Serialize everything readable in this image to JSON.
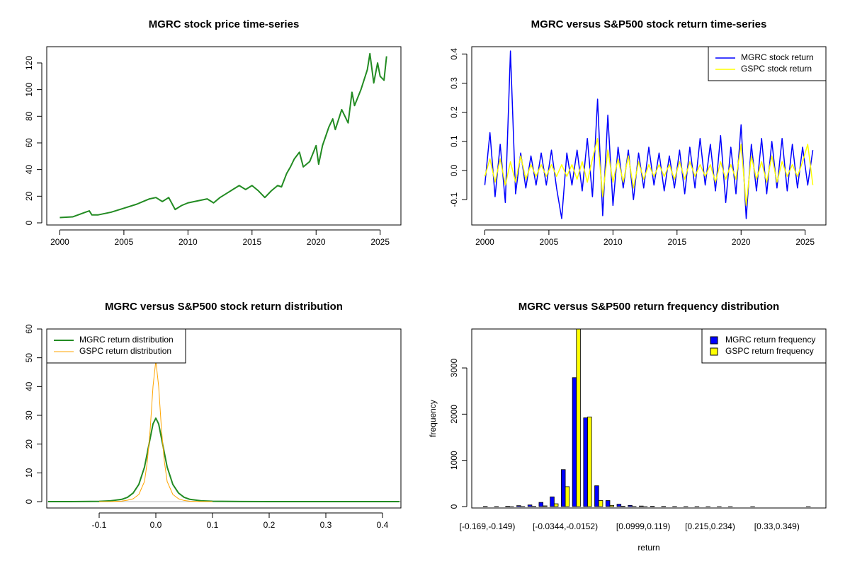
{
  "chart_data": [
    {
      "type": "line",
      "title": "MGRC stock price time-series",
      "color": "#228b22",
      "line_width": 2,
      "x": [
        2000.0,
        2001.0,
        2002.0,
        2002.3,
        2002.5,
        2003.0,
        2004.0,
        2005.0,
        2006.0,
        2006.5,
        2007.0,
        2007.5,
        2008.0,
        2008.5,
        2009.0,
        2009.5,
        2010.0,
        2011.0,
        2011.5,
        2012.0,
        2012.5,
        2013.0,
        2013.5,
        2014.0,
        2014.5,
        2015.0,
        2015.5,
        2016.0,
        2016.5,
        2017.0,
        2017.3,
        2017.7,
        2018.0,
        2018.3,
        2018.7,
        2019.0,
        2019.5,
        2020.0,
        2020.2,
        2020.5,
        2021.0,
        2021.3,
        2021.5,
        2022.0,
        2022.5,
        2022.8,
        2023.0,
        2023.5,
        2024.0,
        2024.2,
        2024.5,
        2024.8,
        2025.0,
        2025.3,
        2025.5
      ],
      "values": [
        4,
        4.5,
        8,
        9,
        6,
        6,
        8,
        11,
        14,
        16,
        18,
        19,
        16,
        19,
        10,
        13,
        15,
        17,
        18,
        15,
        19,
        22,
        25,
        28,
        25,
        28,
        24,
        19,
        24,
        28,
        27,
        37,
        42,
        48,
        53,
        42,
        46,
        58,
        44,
        58,
        72,
        78,
        70,
        85,
        75,
        98,
        88,
        100,
        115,
        127,
        105,
        120,
        110,
        107,
        125
      ],
      "xlim": [
        1998.98,
        2026.62
      ],
      "xticks": [
        2000,
        2005,
        2010,
        2015,
        2020,
        2025
      ],
      "ylim": [
        -1.6,
        132.2
      ],
      "yticks": [
        0,
        20,
        40,
        60,
        80,
        100,
        120
      ]
    },
    {
      "type": "line",
      "title": "MGRC versus S&P500 stock return time-series",
      "legend": "topright",
      "x": [
        2000.0,
        2000.4,
        2000.8,
        2001.2,
        2001.6,
        2002.0,
        2002.4,
        2002.8,
        2003.2,
        2003.6,
        2004.0,
        2004.4,
        2004.8,
        2005.2,
        2005.6,
        2006.0,
        2006.4,
        2006.8,
        2007.2,
        2007.6,
        2008.0,
        2008.4,
        2008.8,
        2009.2,
        2009.6,
        2010.0,
        2010.4,
        2010.8,
        2011.2,
        2011.6,
        2012.0,
        2012.4,
        2012.8,
        2013.2,
        2013.6,
        2014.0,
        2014.4,
        2014.8,
        2015.2,
        2015.6,
        2016.0,
        2016.4,
        2016.8,
        2017.2,
        2017.6,
        2018.0,
        2018.4,
        2018.8,
        2019.2,
        2019.6,
        2020.0,
        2020.4,
        2020.8,
        2021.2,
        2021.6,
        2022.0,
        2022.4,
        2022.8,
        2023.2,
        2023.6,
        2024.0,
        2024.4,
        2024.8,
        2025.2,
        2025.6
      ],
      "series": [
        {
          "name": "MGRC stock return",
          "color": "#0000ff",
          "line_width": 1.5,
          "values": [
            -0.05,
            0.13,
            -0.09,
            0.09,
            -0.11,
            0.41,
            -0.08,
            0.06,
            -0.06,
            0.05,
            -0.05,
            0.06,
            -0.05,
            0.07,
            -0.06,
            -0.165,
            0.06,
            -0.05,
            0.07,
            -0.07,
            0.11,
            -0.09,
            0.245,
            -0.155,
            0.19,
            -0.12,
            0.08,
            -0.06,
            0.07,
            -0.1,
            0.06,
            -0.06,
            0.08,
            -0.05,
            0.06,
            -0.07,
            0.05,
            -0.06,
            0.07,
            -0.08,
            0.08,
            -0.06,
            0.11,
            -0.05,
            0.09,
            -0.07,
            0.12,
            -0.11,
            0.08,
            -0.08,
            0.157,
            -0.165,
            0.09,
            -0.07,
            0.11,
            -0.08,
            0.1,
            -0.06,
            0.11,
            -0.07,
            0.09,
            -0.06,
            0.08,
            -0.05,
            0.07
          ]
        },
        {
          "name": "GSPC stock return",
          "color": "#ffff00",
          "line_width": 1.5,
          "values": [
            -0.02,
            0.04,
            -0.04,
            0.04,
            -0.05,
            0.03,
            -0.04,
            0.05,
            -0.03,
            0.02,
            -0.02,
            0.02,
            -0.02,
            0.02,
            -0.02,
            0.02,
            -0.02,
            0.02,
            -0.03,
            0.03,
            -0.04,
            0.04,
            0.11,
            -0.09,
            0.07,
            -0.04,
            0.04,
            -0.04,
            0.05,
            -0.06,
            0.03,
            -0.03,
            0.02,
            -0.02,
            0.02,
            -0.02,
            0.02,
            -0.03,
            0.03,
            -0.03,
            0.03,
            -0.02,
            0.02,
            -0.02,
            0.02,
            -0.04,
            0.03,
            -0.03,
            0.02,
            -0.03,
            0.09,
            -0.12,
            0.05,
            -0.03,
            0.03,
            -0.04,
            0.05,
            -0.04,
            0.03,
            -0.02,
            0.02,
            -0.02,
            0.03,
            0.09,
            -0.05
          ]
        }
      ],
      "xlim": [
        1998.98,
        2026.62
      ],
      "xticks": [
        2000,
        2005,
        2010,
        2015,
        2020,
        2025
      ],
      "ylim": [
        -0.187,
        0.425
      ],
      "yticks": [
        -0.1,
        {
          "value": 0,
          "label": "0.0"
        },
        0.1,
        0.2,
        0.3,
        0.4
      ]
    },
    {
      "type": "line",
      "title": "MGRC versus S&P500 stock return distribution",
      "legend": "topleft",
      "zero_line": true,
      "x": [
        -0.19,
        -0.15,
        -0.1,
        -0.08,
        -0.06,
        -0.05,
        -0.04,
        -0.03,
        -0.02,
        -0.015,
        -0.01,
        -0.005,
        0,
        0.005,
        0.01,
        0.015,
        0.02,
        0.03,
        0.04,
        0.05,
        0.06,
        0.08,
        0.1,
        0.15,
        0.2,
        0.3,
        0.43
      ],
      "series": [
        {
          "name": "MGRC return distribution",
          "color": "#228b22",
          "line_width": 2,
          "values": [
            0,
            0.02,
            0.1,
            0.3,
            0.8,
            1.5,
            3,
            6,
            12,
            17,
            22,
            27,
            29,
            27,
            22,
            17,
            12,
            6,
            3,
            1.5,
            0.8,
            0.3,
            0.15,
            0.05,
            0.02,
            0.02,
            0
          ]
        },
        {
          "name": "GSPC return distribution",
          "color": "#ffa500",
          "line_width": 1,
          "values": [
            null,
            null,
            0,
            0.05,
            0.2,
            0.5,
            1,
            2.5,
            7,
            14,
            25,
            40,
            49,
            40,
            25,
            14,
            7,
            2.5,
            1,
            0.4,
            0.15,
            0.05,
            0.01,
            null,
            null,
            null,
            null
          ]
        }
      ],
      "xlim": [
        -0.1925,
        0.4325
      ],
      "xticks": [
        -0.1,
        {
          "value": 0,
          "label": "0.0"
        },
        0.1,
        0.2,
        0.3,
        0.4
      ],
      "ylim": [
        -2.2,
        60
      ],
      "yticks": [
        0,
        10,
        20,
        30,
        40,
        50,
        60
      ]
    },
    {
      "type": "bar",
      "title": "MGRC versus S&P500 return frequency distribution",
      "legend": "topright",
      "x_label": "return",
      "y_label": "frequency",
      "categories": [
        "[-0.169,-0.149)",
        null,
        null,
        null,
        null,
        null,
        null,
        "[-0.0344,-0.0152)",
        null,
        null,
        null,
        null,
        null,
        null,
        "[0.0999,0.119)",
        null,
        null,
        null,
        null,
        null,
        "[0.215,0.234)",
        null,
        null,
        null,
        null,
        null,
        "[0.33,0.349)",
        null,
        null,
        null
      ],
      "series": [
        {
          "name": "MGRC return frequency",
          "color": "#0000ff",
          "values": [
            5,
            3,
            8,
            20,
            35,
            90,
            210,
            800,
            2790,
            1920,
            450,
            130,
            50,
            25,
            12,
            8,
            5,
            3,
            2,
            2,
            1,
            1,
            1,
            0,
            1,
            0,
            0,
            0,
            0,
            1
          ]
        },
        {
          "name": "GSPC return frequency",
          "color": "#ffff00",
          "values": [
            0,
            0,
            1,
            3,
            5,
            15,
            60,
            430,
            3880,
            1940,
            130,
            25,
            8,
            3,
            1,
            0,
            0,
            0,
            0,
            0,
            0,
            0,
            0,
            0,
            0,
            0,
            0,
            0,
            0,
            0
          ]
        }
      ],
      "ylim": [
        -31,
        3843
      ],
      "yticks": [
        0,
        1000,
        2000,
        3000
      ]
    }
  ]
}
